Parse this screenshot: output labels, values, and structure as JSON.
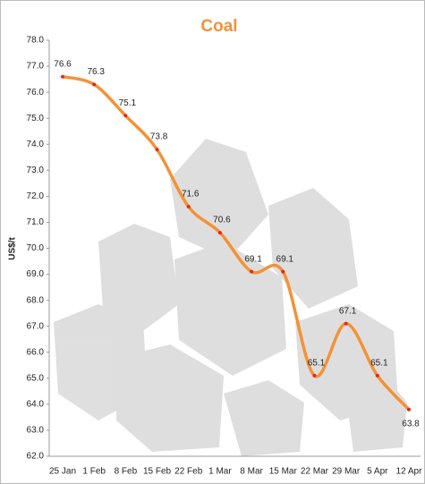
{
  "chart_data": {
    "type": "line",
    "title": "Coal",
    "y_label": "US$/t",
    "categories": [
      "25 Jan",
      "1 Feb",
      "8 Feb",
      "15 Feb",
      "22 Feb",
      "1 Mar",
      "8 Mar",
      "15 Mar",
      "22 Mar",
      "29 Mar",
      "5 Apr",
      "12 Apr"
    ],
    "series": [
      {
        "name": "Coal",
        "color": "#f39237",
        "marker_color": "#e02a1c",
        "values": [
          76.6,
          76.3,
          75.1,
          73.8,
          71.6,
          70.6,
          69.1,
          69.1,
          65.1,
          67.1,
          65.1,
          63.8
        ]
      }
    ],
    "ylim": [
      62,
      78
    ],
    "yticks": [
      {
        "value": 62,
        "label": "62.0"
      },
      {
        "value": 63,
        "label": "63.0"
      },
      {
        "value": 64,
        "label": "64.0"
      },
      {
        "value": 65,
        "label": "65.0"
      },
      {
        "value": 66,
        "label": "66.0"
      },
      {
        "value": 67,
        "label": "67.0"
      },
      {
        "value": 68,
        "label": "68.0"
      },
      {
        "value": 69,
        "label": "69.0"
      },
      {
        "value": 70,
        "label": "70.0"
      },
      {
        "value": 71,
        "label": "71.0"
      },
      {
        "value": 72,
        "label": "72.0"
      },
      {
        "value": 73,
        "label": "73.0"
      },
      {
        "value": 74,
        "label": "74.0"
      },
      {
        "value": 75,
        "label": "75.0"
      },
      {
        "value": 76,
        "label": "76.0"
      },
      {
        "value": 77,
        "label": "77.0"
      },
      {
        "value": 78,
        "label": "78.0"
      }
    ],
    "grid": false
  }
}
